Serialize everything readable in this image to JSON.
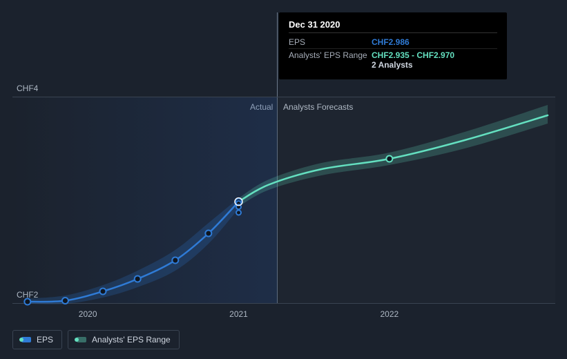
{
  "chart": {
    "type": "line",
    "background_color": "#1b222d",
    "grid_color": "#3a4452",
    "split_line_color": "#5d6b7f",
    "actual_bg_gradient_to": "rgba(40,80,150,0.35)",
    "x": {
      "min": 2019.5,
      "max": 2023.1,
      "ticks": [
        2020,
        2021,
        2022
      ],
      "tick_labels": [
        "2020",
        "2021",
        "2022"
      ]
    },
    "y": {
      "min": 2,
      "max": 4,
      "ticks": [
        2,
        4
      ],
      "tick_labels": [
        "CHF2",
        "CHF4"
      ]
    },
    "sections": {
      "actual_label": "Actual",
      "forecast_label": "Analysts Forecasts",
      "split_at_x": 2021
    },
    "series": {
      "eps": {
        "label": "EPS",
        "color": "#2f7bd6",
        "dot_fill": "#0f1620",
        "show_dots": true,
        "points": [
          {
            "x": 2019.6,
            "y": 2.02
          },
          {
            "x": 2019.85,
            "y": 2.03
          },
          {
            "x": 2020.1,
            "y": 2.12
          },
          {
            "x": 2020.33,
            "y": 2.24
          },
          {
            "x": 2020.58,
            "y": 2.42
          },
          {
            "x": 2020.8,
            "y": 2.68
          },
          {
            "x": 2021.0,
            "y": 2.986
          }
        ]
      },
      "forecast_line": {
        "label": "Analysts' EPS Range",
        "color": "#64e0c0",
        "dot_fill": "#0f1620",
        "show_dots": true,
        "points": [
          {
            "x": 2021.0,
            "y": 2.986
          },
          {
            "x": 2021.2,
            "y": 3.15
          },
          {
            "x": 2021.55,
            "y": 3.3
          },
          {
            "x": 2022.0,
            "y": 3.4
          },
          {
            "x": 2022.5,
            "y": 3.58
          },
          {
            "x": 2023.05,
            "y": 3.82
          }
        ]
      },
      "forecast_band": {
        "fill": "rgba(100,224,192,0.22)",
        "upper": [
          {
            "x": 2021.0,
            "y": 3.02
          },
          {
            "x": 2021.2,
            "y": 3.2
          },
          {
            "x": 2021.55,
            "y": 3.36
          },
          {
            "x": 2022.0,
            "y": 3.46
          },
          {
            "x": 2022.5,
            "y": 3.66
          },
          {
            "x": 2023.05,
            "y": 3.92
          }
        ],
        "lower": [
          {
            "x": 2021.0,
            "y": 2.94
          },
          {
            "x": 2021.2,
            "y": 3.1
          },
          {
            "x": 2021.55,
            "y": 3.24
          },
          {
            "x": 2022.0,
            "y": 3.34
          },
          {
            "x": 2022.5,
            "y": 3.5
          },
          {
            "x": 2023.05,
            "y": 3.74
          }
        ]
      },
      "eps_band": {
        "fill": "rgba(47,123,214,0.22)",
        "upper": [
          {
            "x": 2019.6,
            "y": 2.05
          },
          {
            "x": 2019.85,
            "y": 2.08
          },
          {
            "x": 2020.1,
            "y": 2.18
          },
          {
            "x": 2020.33,
            "y": 2.32
          },
          {
            "x": 2020.58,
            "y": 2.52
          },
          {
            "x": 2020.8,
            "y": 2.78
          },
          {
            "x": 2021.0,
            "y": 3.02
          }
        ],
        "lower": [
          {
            "x": 2019.6,
            "y": 2.0
          },
          {
            "x": 2019.85,
            "y": 2.0
          },
          {
            "x": 2020.1,
            "y": 2.06
          },
          {
            "x": 2020.33,
            "y": 2.16
          },
          {
            "x": 2020.58,
            "y": 2.32
          },
          {
            "x": 2020.8,
            "y": 2.58
          },
          {
            "x": 2021.0,
            "y": 2.92
          }
        ]
      },
      "analyst_dots": {
        "color": "#2f7bd6",
        "points": [
          {
            "x": 2021.0,
            "y": 2.97
          },
          {
            "x": 2021.0,
            "y": 2.935
          },
          {
            "x": 2021.0,
            "y": 2.88
          }
        ]
      }
    }
  },
  "tooltip": {
    "title": "Dec 31 2020",
    "rows": [
      {
        "key": "EPS",
        "val": "CHF2.986",
        "val_color": "#2f7bd6"
      },
      {
        "key": "Analysts' EPS Range",
        "val": "CHF2.935 - CHF2.970",
        "val_color": "#64e0c0",
        "sub": "2 Analysts",
        "sub_color": "#cfd6e0"
      }
    ]
  },
  "legend": {
    "items": [
      {
        "label": "EPS",
        "swatch": "#2f7bd6",
        "dot": "#64e0c0"
      },
      {
        "label": "Analysts' EPS Range",
        "swatch": "rgba(100,224,192,0.4)",
        "dot": "#64e0c0"
      }
    ]
  }
}
